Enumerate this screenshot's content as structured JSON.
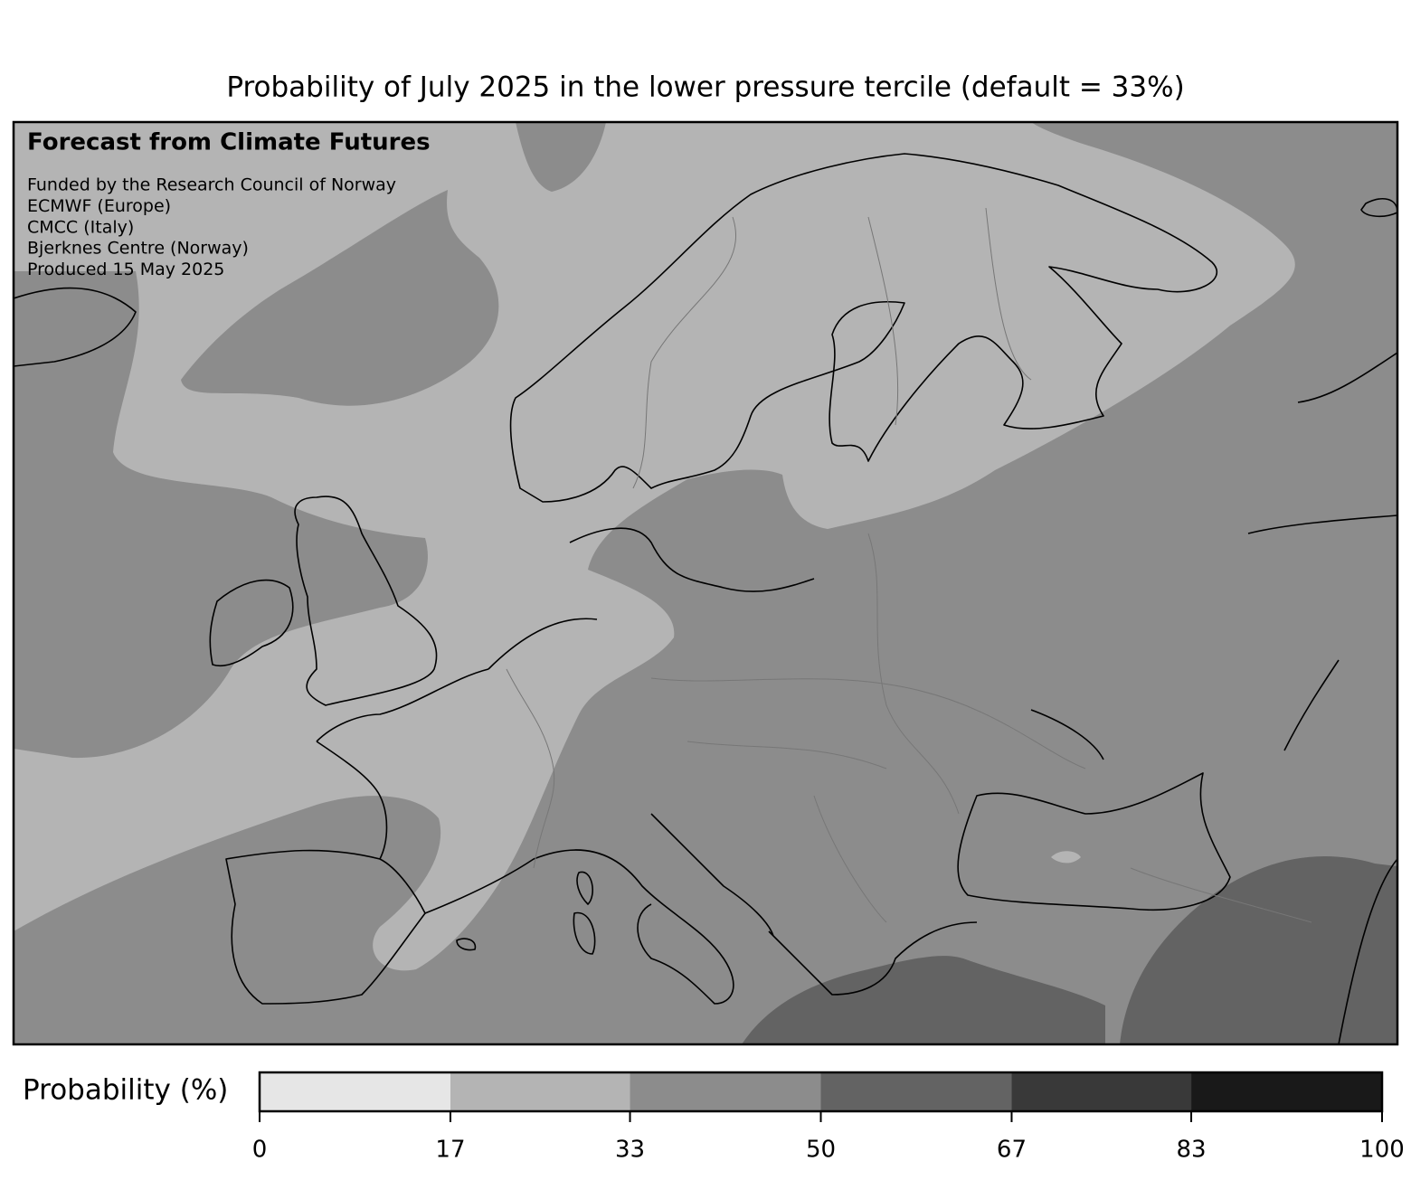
{
  "title": "Probability of July 2025 in the lower pressure tercile (default = 33%)",
  "annotations": {
    "heading": "Forecast from Climate Futures",
    "lines": [
      "Funded by the Research Council of Norway",
      "ECMWF (Europe)",
      "CMCC (Italy)",
      "Bjerknes Centre (Norway)",
      "Produced 15 May 2025"
    ]
  },
  "colorbar": {
    "label": "Probability (%)",
    "ticks": [
      0,
      17,
      33,
      50,
      67,
      83,
      100
    ],
    "colors": [
      "#e6e6e6",
      "#b4b4b4",
      "#8c8c8c",
      "#636363",
      "#393939",
      "#191919"
    ]
  }
}
